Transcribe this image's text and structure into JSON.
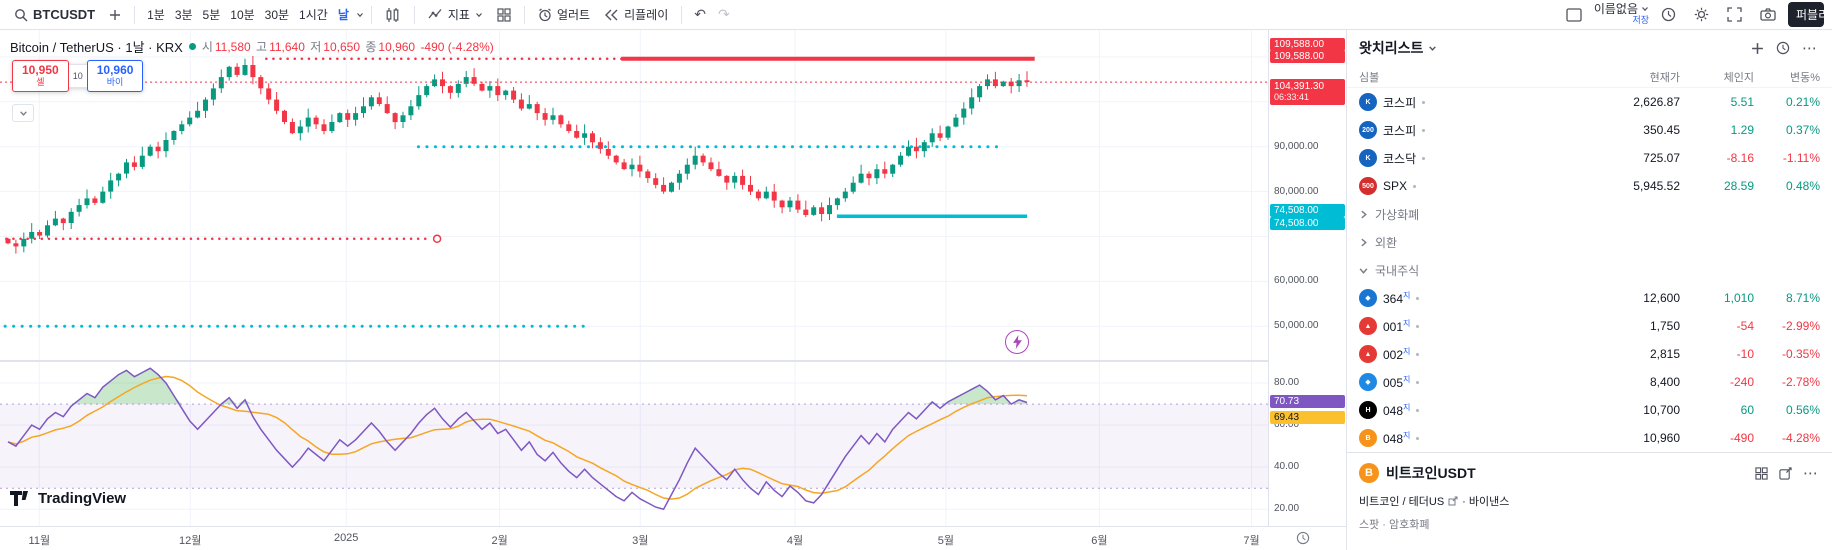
{
  "colors": {
    "up": "#089981",
    "down": "#f23645",
    "cyan": "#00bcd4",
    "blue": "#2962ff",
    "purple": "#7e57c2",
    "yellow": "#f5a623",
    "red": "#f23645"
  },
  "toolbar": {
    "symbol": "BTCUSDT",
    "intervals": [
      "1분",
      "3분",
      "5분",
      "10분",
      "30분",
      "1시간",
      "날"
    ],
    "active_interval": "날",
    "indicators": "지표",
    "alert": "얼러트",
    "replay": "리플레이",
    "layout_name": "이름없음",
    "save": "저장",
    "publish": "퍼블리시"
  },
  "legend": {
    "symbol_title": "Bitcoin / TetherUS · 1날 · KRX",
    "o_label": "시",
    "o": "11,580",
    "h_label": "고",
    "h": "11,640",
    "l_label": "저",
    "l": "10,650",
    "c_label": "종",
    "c": "10,960",
    "change": "-490 (-4.28%)"
  },
  "trade": {
    "sell_price": "10,950",
    "sell_label": "셀",
    "spread": "10",
    "buy_price": "10,960",
    "buy_label": "바이"
  },
  "price_axis": {
    "top_badge": {
      "label": "109,588.00",
      "price": 109588
    },
    "current": {
      "label": "104,391.30",
      "countdown": "06:33:41",
      "price_value": 104391.3
    },
    "teal_badge": {
      "label": "74,508.00",
      "price": 74508
    },
    "ticks": [
      {
        "label": "90,000.00",
        "price": 90000
      },
      {
        "label": "80,000.00",
        "price": 80000
      },
      {
        "label": "60,000.00",
        "price": 60000
      },
      {
        "label": "50,000.00",
        "price": 50000
      }
    ],
    "rsi_ticks": [
      {
        "label": "80.00",
        "value": 80
      },
      {
        "label": "60.00",
        "value": 60
      },
      {
        "label": "40.00",
        "value": 40
      },
      {
        "label": "20.00",
        "value": 20
      }
    ],
    "rsi_purple": {
      "label": "70.73",
      "value": 70.73
    },
    "rsi_yellow": {
      "label": "69.43"
    }
  },
  "time_axis": {
    "labels": [
      {
        "text": "11월",
        "pct": 3.1
      },
      {
        "text": "12월",
        "pct": 15.0
      },
      {
        "text": "2025",
        "pct": 27.3
      },
      {
        "text": "2월",
        "pct": 39.4
      },
      {
        "text": "3월",
        "pct": 50.5
      },
      {
        "text": "4월",
        "pct": 62.7
      },
      {
        "text": "5월",
        "pct": 74.6
      },
      {
        "text": "6월",
        "pct": 86.7
      },
      {
        "text": "7월",
        "pct": 98.7
      }
    ]
  },
  "chart_data": {
    "type": "candlestick",
    "title": "Bitcoin / TetherUS 1D with RSI pane",
    "x_months": [
      "11월",
      "12월",
      "2025",
      "2월",
      "3월",
      "4월",
      "5월",
      "6월",
      "7월"
    ],
    "price_range": [
      42500,
      116000
    ],
    "grid_prices": [
      110000,
      100000,
      90000,
      80000,
      70000,
      60000,
      50000
    ],
    "first_open": 69500,
    "candles_close": [
      68500,
      67800,
      69500,
      71000,
      70200,
      72500,
      74000,
      73000,
      75500,
      77000,
      78500,
      77500,
      80000,
      82500,
      84000,
      86500,
      85500,
      88000,
      90000,
      89000,
      91500,
      93500,
      95000,
      96500,
      98000,
      100500,
      103000,
      105500,
      107800,
      106000,
      108200,
      105500,
      103000,
      100500,
      98000,
      95500,
      93000,
      94500,
      96500,
      95000,
      93500,
      95500,
      97500,
      96000,
      97500,
      99000,
      101000,
      99500,
      97500,
      95500,
      97000,
      99000,
      101500,
      103500,
      105000,
      103500,
      102000,
      104000,
      105500,
      104000,
      102500,
      103500,
      101500,
      102500,
      100500,
      98500,
      99500,
      97500,
      96000,
      97000,
      95000,
      93500,
      92000,
      93000,
      91000,
      89500,
      88000,
      86500,
      85000,
      86000,
      84500,
      83000,
      81500,
      80000,
      82000,
      84000,
      86000,
      88000,
      86500,
      85000,
      83500,
      82000,
      83500,
      81500,
      80000,
      78500,
      80000,
      78000,
      76500,
      78000,
      76000,
      74800,
      76500,
      75000,
      77000,
      78500,
      80000,
      82000,
      84000,
      83000,
      85000,
      84000,
      86000,
      88000,
      90000,
      89000,
      91000,
      93000,
      92000,
      94500,
      96500,
      98500,
      101000,
      103500,
      105000,
      103500,
      104500,
      103500,
      104800,
      104391
    ],
    "rsi_range": [
      12,
      90
    ],
    "rsi": [
      52,
      50,
      55,
      60,
      58,
      63,
      66,
      64,
      69,
      72,
      75,
      73,
      78,
      81,
      84,
      86,
      83,
      85,
      87,
      84,
      80,
      74,
      68,
      62,
      58,
      62,
      66,
      70,
      73,
      68,
      72,
      64,
      58,
      53,
      48,
      44,
      40,
      44,
      49,
      46,
      43,
      48,
      53,
      50,
      53,
      57,
      61,
      57,
      52,
      48,
      52,
      56,
      61,
      65,
      68,
      63,
      59,
      63,
      66,
      62,
      58,
      61,
      56,
      58,
      53,
      48,
      52,
      46,
      43,
      47,
      42,
      38,
      35,
      39,
      35,
      32,
      29,
      26,
      24,
      28,
      25,
      23,
      21,
      20,
      27,
      34,
      42,
      49,
      45,
      41,
      37,
      34,
      39,
      34,
      30,
      27,
      33,
      29,
      26,
      31,
      28,
      24,
      23,
      27,
      33,
      39,
      45,
      50,
      55,
      51,
      56,
      52,
      58,
      62,
      66,
      63,
      67,
      71,
      68,
      71,
      73,
      75,
      77,
      79,
      76,
      72,
      74,
      70,
      72,
      70.73
    ],
    "levels": [
      {
        "price": 109588,
        "x1_pct": 21,
        "x2_pct": 81.3,
        "color": "#f23645",
        "style": "dotted",
        "width": 2.5
      },
      {
        "price": 109588,
        "x1_pct": 49,
        "x2_pct": 81.6,
        "color": "#f23645",
        "style": "solid",
        "width": 4
      },
      {
        "price": 104391.3,
        "x1_pct": 0,
        "x2_pct": 100,
        "color": "#f23645",
        "style": "fine",
        "width": 1
      },
      {
        "price": 90000,
        "x1_pct": 33,
        "x2_pct": 79,
        "color": "#00bcd4",
        "style": "dotted",
        "width": 3
      },
      {
        "price": 74508,
        "x1_pct": 66,
        "x2_pct": 81,
        "color": "#00bcd4",
        "style": "solid",
        "width": 3.5
      },
      {
        "price": 69500,
        "x1_pct": 0.5,
        "x2_pct": 34,
        "color": "#f23645",
        "style": "dotted",
        "width": 2.5,
        "end_circle": true
      },
      {
        "price": 50000,
        "x1_pct": 0.4,
        "x2_pct": 46,
        "color": "#00bcd4",
        "style": "dotted",
        "width": 3
      }
    ]
  },
  "branding": {
    "logo_text": "TradingView"
  },
  "watchlist": {
    "title": "왓치리스트",
    "columns": [
      "심볼",
      "현재가",
      "체인지",
      "변동%"
    ],
    "rows": [
      {
        "type": "symbol",
        "name": "코스피",
        "icon_bg": "#1565c0",
        "icon_text": "K",
        "price": "2,626.87",
        "change": "5.51",
        "change_pct": "0.21%",
        "dir": "up"
      },
      {
        "type": "symbol",
        "name": "코스피",
        "icon_bg": "#1565c0",
        "icon_text": "200",
        "price": "350.45",
        "change": "1.29",
        "change_pct": "0.37%",
        "dir": "up"
      },
      {
        "type": "symbol",
        "name": "코스닥",
        "icon_bg": "#1565c0",
        "icon_text": "K",
        "price": "725.07",
        "change": "-8.16",
        "change_pct": "-1.11%",
        "dir": "down"
      },
      {
        "type": "symbol",
        "name": "SPX",
        "icon_bg": "#d32f2f",
        "icon_text": "500",
        "price": "5,945.52",
        "change": "28.59",
        "change_pct": "0.48%",
        "dir": "up"
      },
      {
        "type": "section",
        "name": "가상화폐",
        "collapsed": true
      },
      {
        "type": "section",
        "name": "외환",
        "collapsed": true
      },
      {
        "type": "section",
        "name": "국내주식",
        "collapsed": false
      },
      {
        "type": "symbol",
        "name": "364",
        "sup": "지",
        "icon_bg": "#1976d2",
        "icon_text": "◆",
        "price": "12,600",
        "change": "1,010",
        "change_pct": "8.71%",
        "dir": "up"
      },
      {
        "type": "symbol",
        "name": "001",
        "sup": "지",
        "icon_bg": "#e53935",
        "icon_text": "▲",
        "price": "1,750",
        "change": "-54",
        "change_pct": "-2.99%",
        "dir": "down"
      },
      {
        "type": "symbol",
        "name": "002",
        "sup": "지",
        "icon_bg": "#e53935",
        "icon_text": "▲",
        "price": "2,815",
        "change": "-10",
        "change_pct": "-0.35%",
        "dir": "down"
      },
      {
        "type": "symbol",
        "name": "005",
        "sup": "지",
        "icon_bg": "#1e88e5",
        "icon_text": "◆",
        "price": "8,400",
        "change": "-240",
        "change_pct": "-2.78%",
        "dir": "down"
      },
      {
        "type": "symbol",
        "name": "048",
        "sup": "지",
        "icon_bg": "#000000",
        "icon_text": "H",
        "price": "10,700",
        "change": "60",
        "change_pct": "0.56%",
        "dir": "up"
      },
      {
        "type": "symbol",
        "name": "048",
        "sup": "지",
        "icon_bg": "#f7931a",
        "icon_text": "B",
        "price": "10,960",
        "change": "-490",
        "change_pct": "-4.28%",
        "dir": "down"
      }
    ]
  },
  "symbol_panel": {
    "title": "비트코인USDT",
    "pair": "비트코인 / 테더US",
    "exchange": "· 바이낸스",
    "meta": "스팟 · 암호화폐"
  }
}
